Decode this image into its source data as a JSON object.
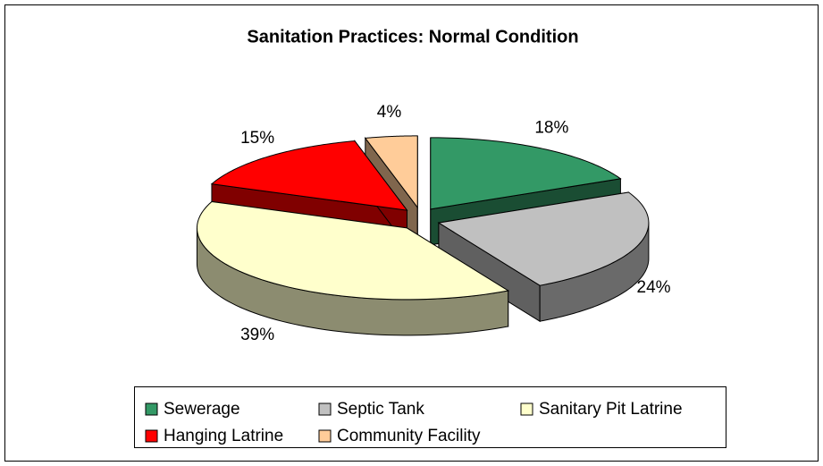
{
  "chart_data": {
    "type": "pie3d",
    "title": "Sanitation Practices: Normal Condition",
    "categories": [
      "Sewerage",
      "Septic Tank",
      "Sanitary Pit Latrine",
      "Hanging Latrine",
      "Community Facility"
    ],
    "values": [
      18,
      24,
      39,
      15,
      4
    ],
    "value_labels": [
      "18%",
      "24%",
      "39%",
      "15%",
      "4%"
    ],
    "colors": [
      "#339966",
      "#c0c0c0",
      "#ffffcc",
      "#ff0000",
      "#ffcc99"
    ],
    "legend": "bottom"
  }
}
